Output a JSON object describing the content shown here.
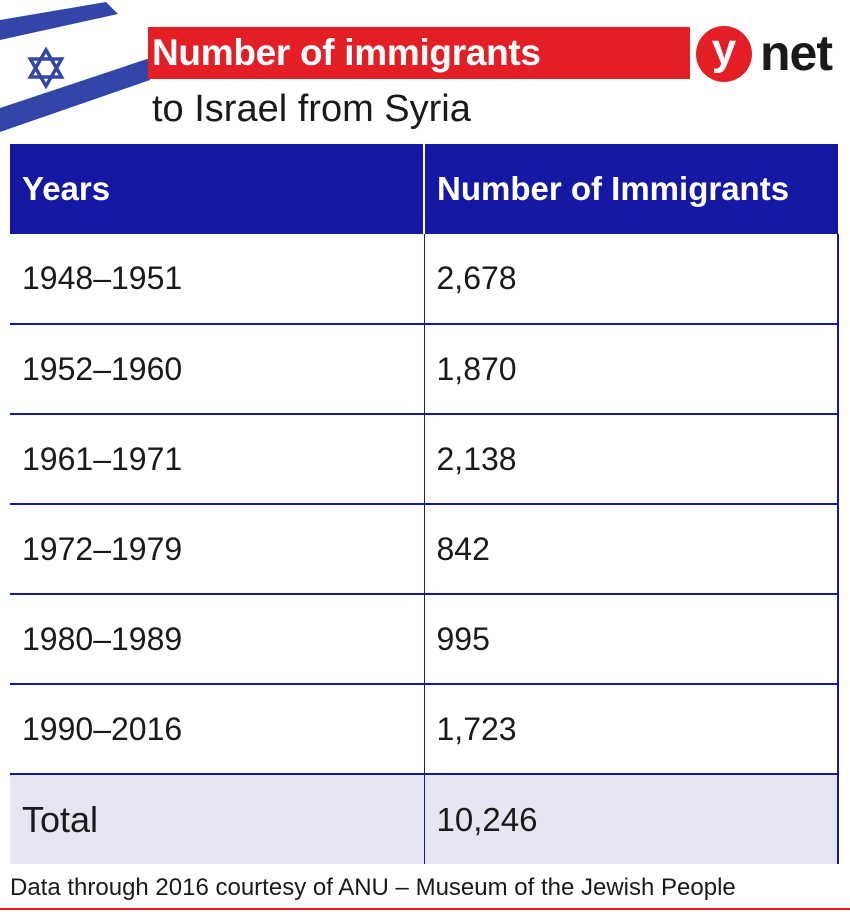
{
  "title": {
    "main": "Number of immigrants",
    "sub": "to Israel from Syria"
  },
  "logo": {
    "y": "y",
    "net": "net"
  },
  "colors": {
    "header_blue": "#1418a3",
    "title_red": "#e31e24",
    "total_row_bg": "#e6e6f2"
  },
  "chart_data": {
    "type": "table",
    "columns": [
      "Years",
      "Number of Immigrants"
    ],
    "rows": [
      [
        "1948–1951",
        "2,678"
      ],
      [
        "1952–1960",
        "1,870"
      ],
      [
        "1961–1971",
        "2,138"
      ],
      [
        "1972–1979",
        "842"
      ],
      [
        "1980–1989",
        "995"
      ],
      [
        "1990–2016",
        "1,723"
      ]
    ],
    "total": [
      "Total",
      "10,246"
    ]
  },
  "source": "Data through 2016 courtesy of ANU – Museum of the Jewish People"
}
